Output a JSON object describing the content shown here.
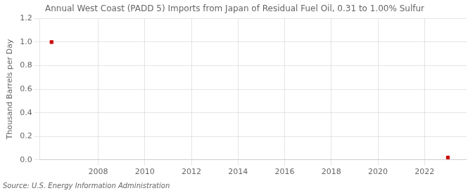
{
  "chart_data": {
    "type": "scatter",
    "title": "Annual West Coast (PADD 5) Imports from Japan of Residual Fuel Oil, 0.31 to 1.00% Sulfur",
    "ylabel": "Thousand Barrels per Day",
    "source": "Source: U.S. Energy Information Administration",
    "x": [
      2006,
      2023
    ],
    "values": [
      1.0,
      0.02
    ],
    "color": "#cc0000",
    "marker": "square",
    "xlim": [
      2005.5,
      2023.8
    ],
    "ylim": [
      0.0,
      1.2
    ],
    "xticks": [
      2008,
      2010,
      2012,
      2014,
      2016,
      2018,
      2020,
      2022
    ],
    "yticks": [
      {
        "value": 0,
        "label": "0.0"
      },
      0.2,
      0.4,
      0.6,
      0.8,
      {
        "value": 1,
        "label": "1.0"
      },
      1.2
    ],
    "grid": true
  }
}
